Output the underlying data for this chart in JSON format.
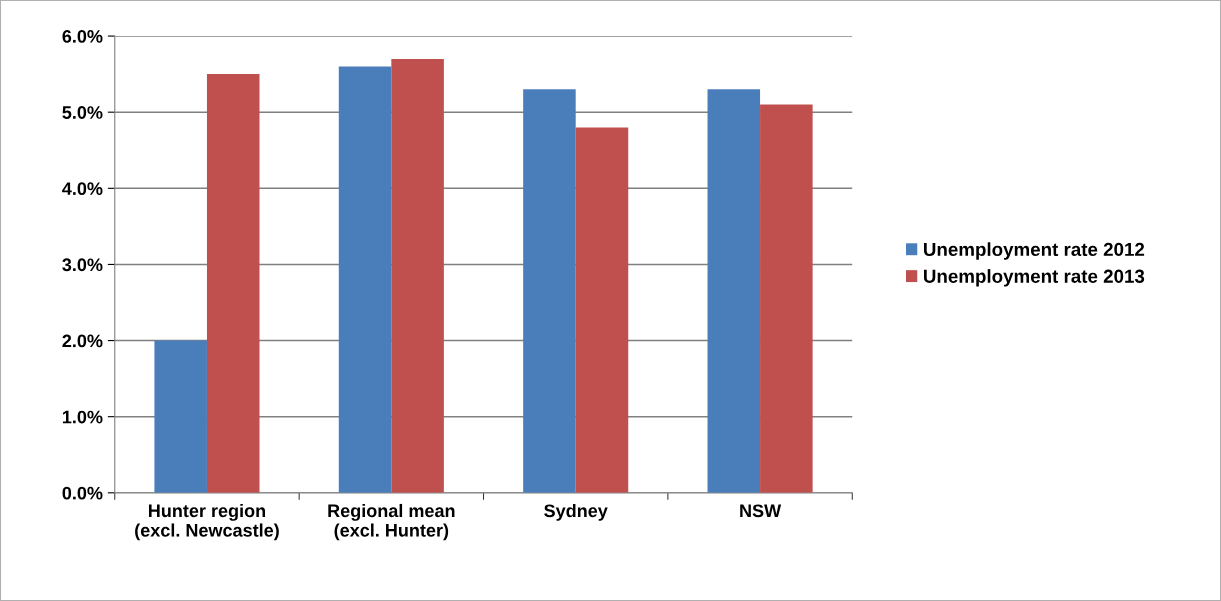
{
  "chart_data": {
    "type": "bar",
    "categories": [
      "Hunter region\n(excl. Newcastle)",
      "Regional mean\n(excl. Hunter)",
      "Sydney",
      "NSW"
    ],
    "series": [
      {
        "name": "Unemployment rate 2012",
        "color": "#4a7ebb",
        "values": [
          2.0,
          5.6,
          5.3,
          5.3
        ]
      },
      {
        "name": "Unemployment rate 2013",
        "color": "#c0504d",
        "values": [
          5.5,
          5.7,
          4.8,
          5.1
        ]
      }
    ],
    "ylim": [
      0,
      6
    ],
    "yticks": [
      {
        "value": 0,
        "label": "0.0%"
      },
      {
        "value": 1,
        "label": "1.0%"
      },
      {
        "value": 2,
        "label": "2.0%"
      },
      {
        "value": 3,
        "label": "3.0%"
      },
      {
        "value": 4,
        "label": "4.0%"
      },
      {
        "value": 5,
        "label": "5.0%"
      },
      {
        "value": 6,
        "label": "6.0%"
      }
    ],
    "grid": "y",
    "legend": "right"
  }
}
